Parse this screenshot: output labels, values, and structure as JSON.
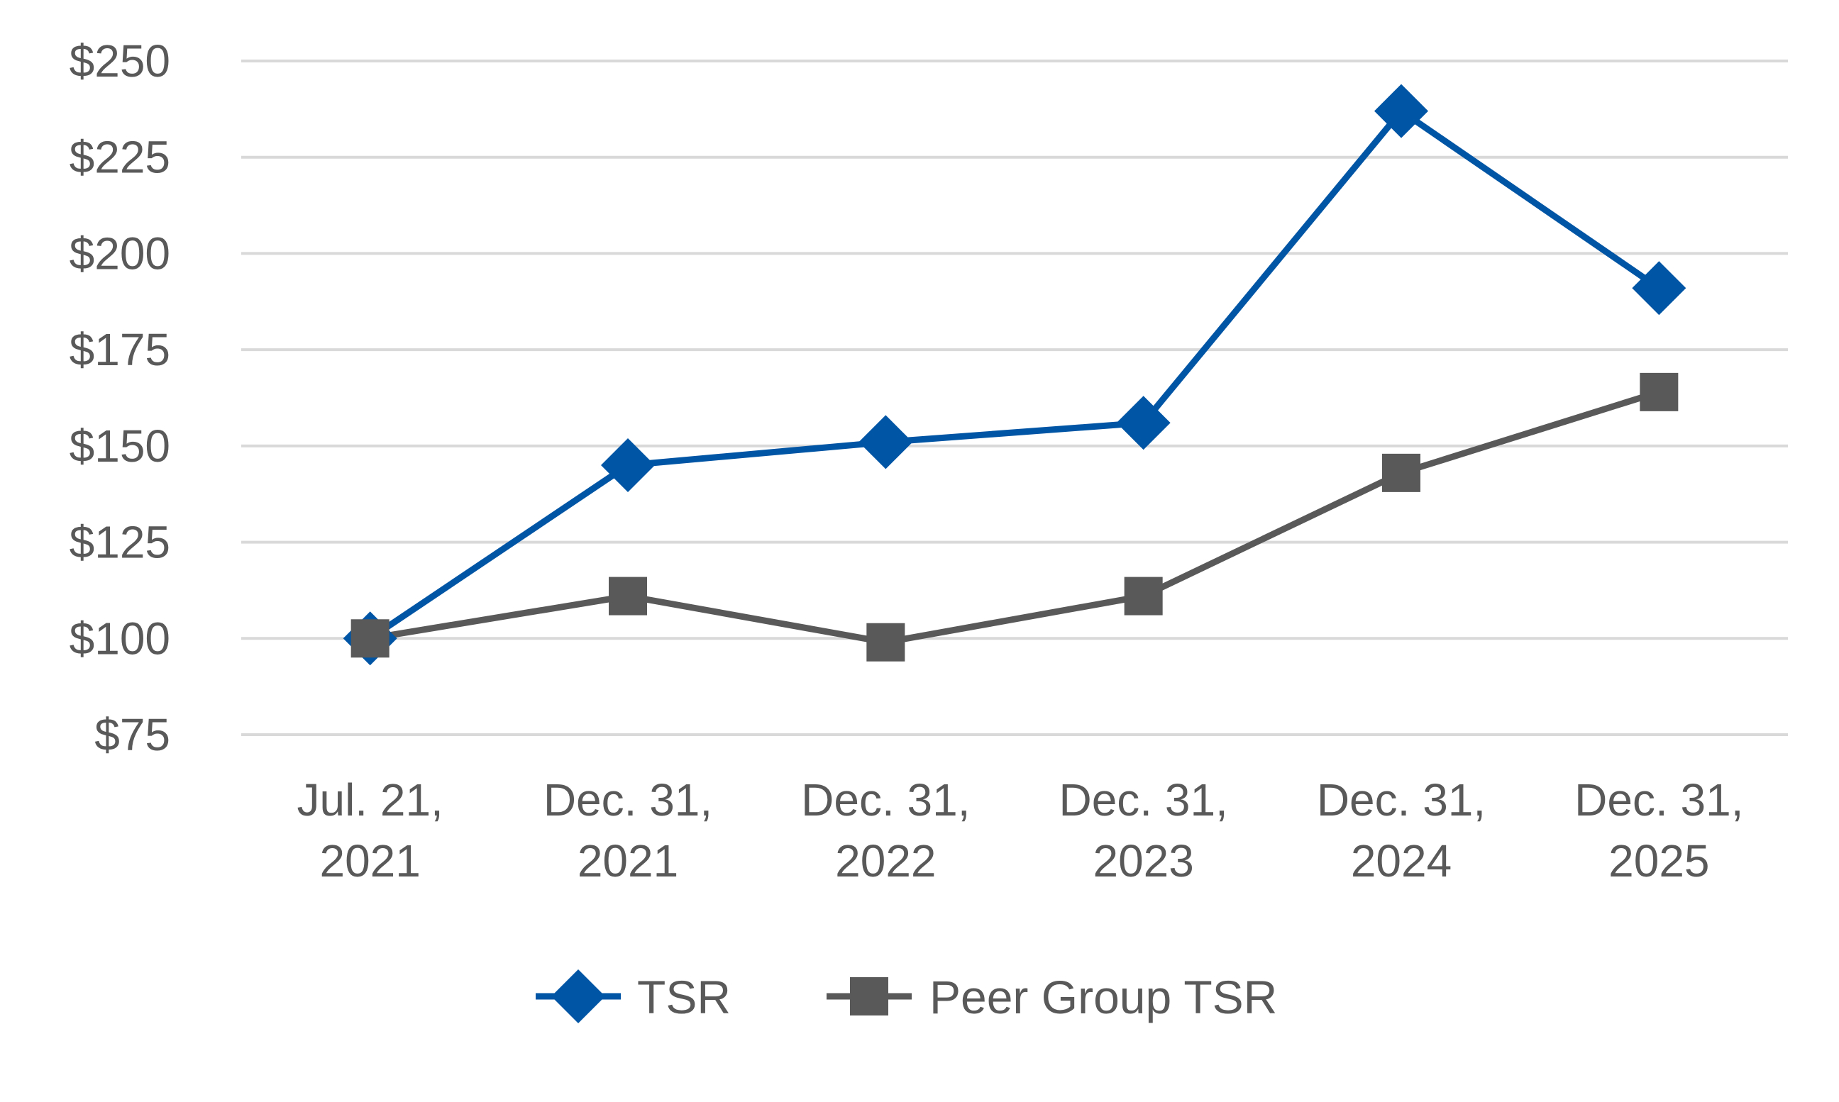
{
  "chart_data": {
    "type": "line",
    "title": "",
    "xlabel": "",
    "ylabel": "",
    "categories": [
      [
        "Jul. 21,",
        "2021"
      ],
      [
        "Dec. 31,",
        "2021"
      ],
      [
        "Dec. 31,",
        "2022"
      ],
      [
        "Dec. 31,",
        "2023"
      ],
      [
        "Dec. 31,",
        "2024"
      ],
      [
        "Dec. 31,",
        "2025"
      ]
    ],
    "yticks": [
      75,
      100,
      125,
      150,
      175,
      200,
      225,
      250
    ],
    "ytick_labels": [
      "$75",
      "$100",
      "$125",
      "$150",
      "$175",
      "$200",
      "$225",
      "$250"
    ],
    "ylim": [
      75,
      250
    ],
    "grid": true,
    "legend_position": "bottom-center",
    "series": [
      {
        "name": "TSR",
        "marker": "diamond",
        "color": "#0055A4",
        "values": [
          100,
          145,
          151,
          156,
          237,
          191
        ]
      },
      {
        "name": "Peer Group TSR",
        "marker": "square",
        "color": "#595959",
        "values": [
          100,
          111,
          99,
          111,
          143,
          164
        ]
      }
    ]
  }
}
